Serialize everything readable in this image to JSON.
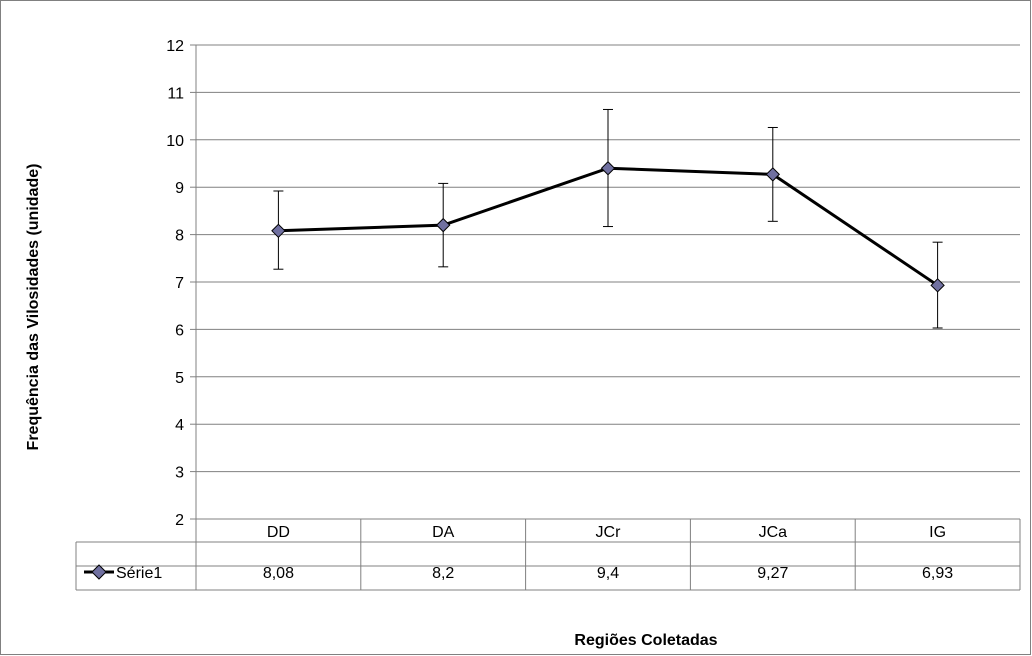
{
  "chart_data": {
    "type": "line",
    "categories": [
      "DD",
      "DA",
      "JCr",
      "JCa",
      "IG"
    ],
    "series": [
      {
        "name": "Série1",
        "values": [
          8.08,
          8.2,
          9.4,
          9.27,
          6.93
        ],
        "error_low": [
          7.27,
          7.32,
          8.17,
          8.28,
          6.03
        ],
        "error_high": [
          8.92,
          9.08,
          10.64,
          10.26,
          7.84
        ],
        "value_labels": [
          "8,08",
          "8,2",
          "9,4",
          "9,27",
          "6,93"
        ],
        "line_color": "#000000",
        "marker_color": "#7070a0"
      }
    ],
    "xlabel": "Regiões Coletadas",
    "ylabel": "Frequência das Vilosidades (unidade)",
    "ylim": [
      2,
      12
    ],
    "yticks": [
      2,
      3,
      4,
      5,
      6,
      7,
      8,
      9,
      10,
      11,
      12
    ],
    "grid": true,
    "data_table": true
  }
}
